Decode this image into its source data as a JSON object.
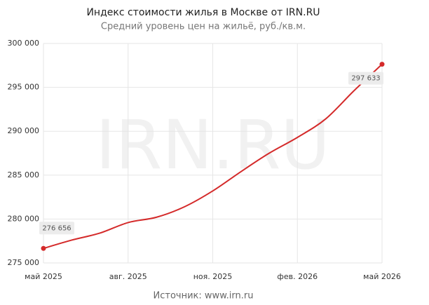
{
  "chart_data": {
    "type": "line",
    "title": "Индекс стоимости жилья в Москве от IRN.RU",
    "subtitle": "Средний уровень цен на жильё, руб./кв.м.",
    "watermark": "IRN.RU",
    "source": "Источник: www.irn.ru",
    "categories": [
      "май 2025",
      null,
      null,
      "авг. 2025",
      null,
      null,
      "ноя. 2025",
      null,
      null,
      "фев. 2026",
      null,
      null,
      "май 2026"
    ],
    "series": [
      {
        "name": "Индекс стоимости жилья",
        "color": "#d42a2a",
        "values": [
          276656,
          277600,
          278400,
          279600,
          280200,
          281400,
          283200,
          285400,
          287500,
          289300,
          291400,
          294600,
          297633
        ],
        "value_labels": [
          "276 656",
          null,
          null,
          null,
          null,
          null,
          null,
          null,
          null,
          null,
          null,
          null,
          "297 633"
        ]
      }
    ],
    "ylim": [
      275000,
      300000
    ],
    "yticks": [
      {
        "value": 275000,
        "label": "275 000"
      },
      {
        "value": 280000,
        "label": "280 000"
      },
      {
        "value": 285000,
        "label": "285 000"
      },
      {
        "value": 290000,
        "label": "290 000"
      },
      {
        "value": 295000,
        "label": "295 000"
      },
      {
        "value": 300000,
        "label": "300 000"
      }
    ],
    "grid": true
  }
}
